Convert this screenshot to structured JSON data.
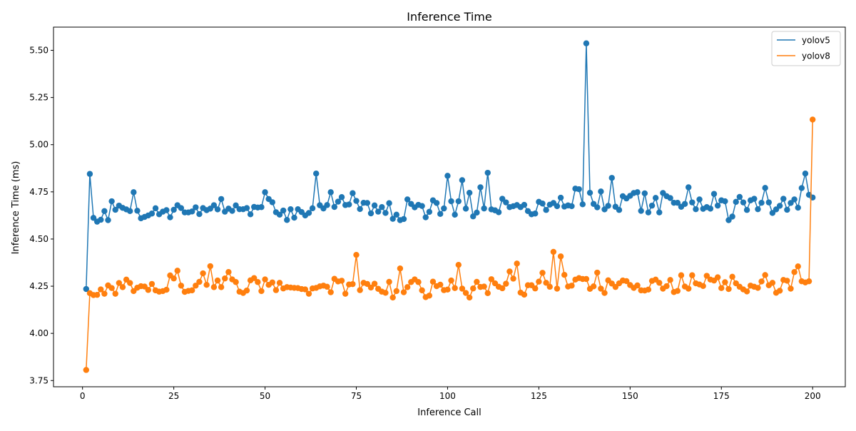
{
  "chart_data": {
    "type": "line",
    "title": "Inference Time",
    "xlabel": "Inference Call",
    "ylabel": "Inference Time (ms)",
    "xlim": [
      -7.95,
      208.95
    ],
    "ylim": [
      3.717,
      5.623
    ],
    "xticks": [
      0,
      25,
      50,
      75,
      100,
      125,
      150,
      175,
      200
    ],
    "yticks": [
      3.75,
      4.0,
      4.25,
      4.5,
      4.75,
      5.0,
      5.25,
      5.5
    ],
    "xtick_labels": [
      "0",
      "25",
      "50",
      "75",
      "100",
      "125",
      "150",
      "175",
      "200"
    ],
    "ytick_labels": [
      "3.75",
      "4.00",
      "4.25",
      "4.50",
      "4.75",
      "5.00",
      "5.25",
      "5.50"
    ],
    "legend_position": "top-right",
    "markers": true,
    "grid": false,
    "series": [
      {
        "name": "yolov5",
        "color": "#1f77b4",
        "values": [
          4.235,
          4.845,
          4.612,
          4.592,
          4.602,
          4.648,
          4.6,
          4.7,
          4.655,
          4.677,
          4.665,
          4.657,
          4.648,
          4.748,
          4.65,
          4.61,
          4.617,
          4.625,
          4.635,
          4.663,
          4.631,
          4.645,
          4.653,
          4.615,
          4.655,
          4.679,
          4.664,
          4.641,
          4.641,
          4.646,
          4.668,
          4.632,
          4.664,
          4.653,
          4.661,
          4.679,
          4.657,
          4.712,
          4.645,
          4.661,
          4.649,
          4.678,
          4.658,
          4.658,
          4.664,
          4.631,
          4.67,
          4.667,
          4.669,
          4.748,
          4.712,
          4.695,
          4.642,
          4.629,
          4.651,
          4.601,
          4.658,
          4.613,
          4.658,
          4.643,
          4.625,
          4.638,
          4.663,
          4.847,
          4.679,
          4.662,
          4.68,
          4.748,
          4.67,
          4.698,
          4.722,
          4.68,
          4.683,
          4.743,
          4.702,
          4.659,
          4.692,
          4.691,
          4.636,
          4.678,
          4.645,
          4.669,
          4.638,
          4.69,
          4.607,
          4.629,
          4.6,
          4.606,
          4.71,
          4.686,
          4.668,
          4.681,
          4.675,
          4.615,
          4.644,
          4.705,
          4.691,
          4.633,
          4.662,
          4.835,
          4.7,
          4.629,
          4.7,
          4.812,
          4.661,
          4.745,
          4.62,
          4.64,
          4.774,
          4.662,
          4.851,
          4.657,
          4.652,
          4.642,
          4.713,
          4.694,
          4.669,
          4.674,
          4.68,
          4.669,
          4.681,
          4.648,
          4.631,
          4.635,
          4.697,
          4.688,
          4.654,
          4.682,
          4.691,
          4.674,
          4.719,
          4.672,
          4.678,
          4.674,
          4.767,
          4.764,
          4.684,
          5.537,
          4.745,
          4.686,
          4.668,
          4.752,
          4.657,
          4.676,
          4.824,
          4.671,
          4.654,
          4.727,
          4.715,
          4.729,
          4.744,
          4.748,
          4.649,
          4.742,
          4.641,
          4.677,
          4.718,
          4.641,
          4.744,
          4.727,
          4.717,
          4.692,
          4.692,
          4.671,
          4.686,
          4.774,
          4.694,
          4.658,
          4.71,
          4.66,
          4.669,
          4.661,
          4.739,
          4.677,
          4.705,
          4.7,
          4.6,
          4.619,
          4.697,
          4.723,
          4.694,
          4.654,
          4.705,
          4.713,
          4.658,
          4.692,
          4.771,
          4.694,
          4.638,
          4.657,
          4.676,
          4.713,
          4.655,
          4.691,
          4.71,
          4.666,
          4.77,
          4.847,
          4.734,
          4.72
        ]
      },
      {
        "name": "yolov8",
        "color": "#ff7f0e",
        "values": [
          3.806,
          4.213,
          4.203,
          4.204,
          4.233,
          4.21,
          4.254,
          4.24,
          4.21,
          4.267,
          4.245,
          4.285,
          4.267,
          4.224,
          4.242,
          4.25,
          4.248,
          4.23,
          4.262,
          4.228,
          4.221,
          4.224,
          4.231,
          4.307,
          4.291,
          4.332,
          4.253,
          4.22,
          4.225,
          4.228,
          4.253,
          4.273,
          4.318,
          4.257,
          4.356,
          4.245,
          4.28,
          4.245,
          4.291,
          4.325,
          4.286,
          4.272,
          4.221,
          4.214,
          4.227,
          4.281,
          4.293,
          4.272,
          4.224,
          4.286,
          4.257,
          4.27,
          4.229,
          4.268,
          4.238,
          4.245,
          4.243,
          4.241,
          4.24,
          4.235,
          4.233,
          4.21,
          4.238,
          4.241,
          4.249,
          4.253,
          4.247,
          4.218,
          4.289,
          4.275,
          4.279,
          4.21,
          4.259,
          4.261,
          4.416,
          4.229,
          4.268,
          4.262,
          4.243,
          4.263,
          4.236,
          4.221,
          4.215,
          4.273,
          4.19,
          4.224,
          4.344,
          4.218,
          4.245,
          4.272,
          4.286,
          4.272,
          4.228,
          4.192,
          4.2,
          4.274,
          4.25,
          4.258,
          4.229,
          4.232,
          4.28,
          4.24,
          4.363,
          4.237,
          4.214,
          4.19,
          4.238,
          4.273,
          4.246,
          4.248,
          4.213,
          4.287,
          4.265,
          4.247,
          4.239,
          4.263,
          4.328,
          4.29,
          4.37,
          4.216,
          4.205,
          4.255,
          4.255,
          4.238,
          4.274,
          4.321,
          4.268,
          4.247,
          4.432,
          4.237,
          4.408,
          4.31,
          4.248,
          4.253,
          4.285,
          4.293,
          4.288,
          4.288,
          4.236,
          4.249,
          4.322,
          4.237,
          4.214,
          4.281,
          4.264,
          4.246,
          4.265,
          4.28,
          4.277,
          4.256,
          4.241,
          4.254,
          4.228,
          4.227,
          4.232,
          4.278,
          4.285,
          4.268,
          4.237,
          4.25,
          4.283,
          4.219,
          4.225,
          4.308,
          4.248,
          4.237,
          4.308,
          4.265,
          4.259,
          4.251,
          4.305,
          4.285,
          4.28,
          4.297,
          4.24,
          4.271,
          4.235,
          4.3,
          4.265,
          4.247,
          4.233,
          4.222,
          4.253,
          4.247,
          4.241,
          4.275,
          4.309,
          4.255,
          4.268,
          4.215,
          4.226,
          4.283,
          4.279,
          4.237,
          4.325,
          4.355,
          4.276,
          4.27,
          4.276,
          5.133
        ]
      }
    ]
  }
}
